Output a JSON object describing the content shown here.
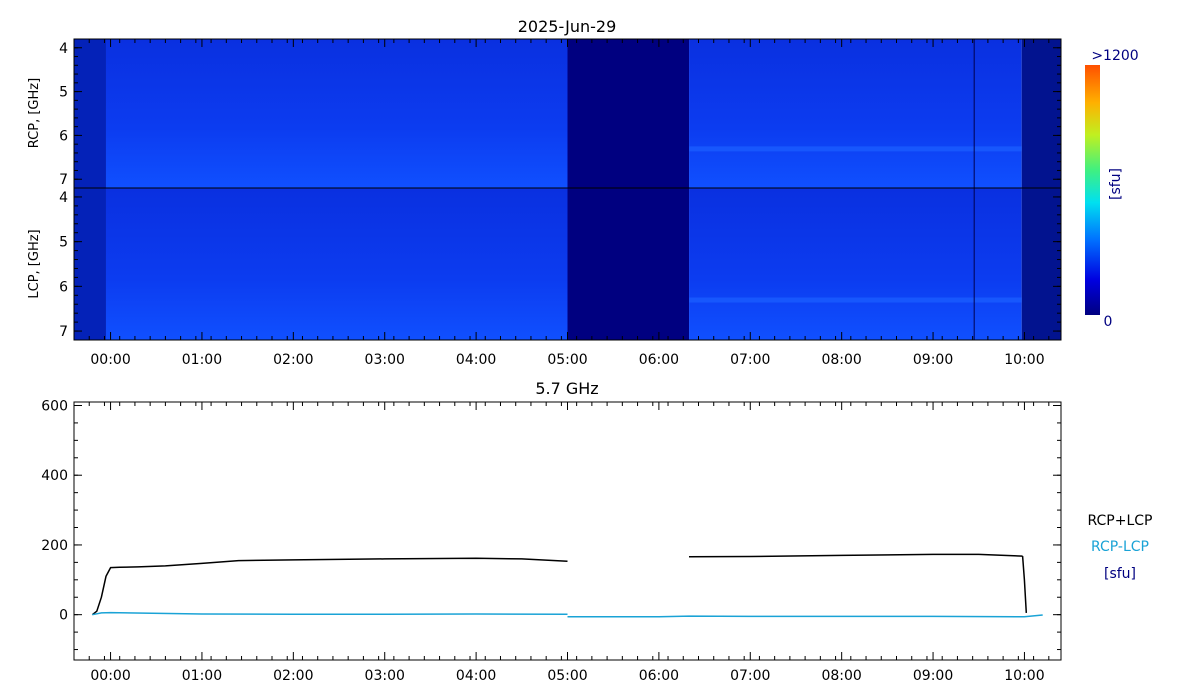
{
  "chart_data": [
    {
      "type": "heatmap",
      "title": "2025-Jun-29",
      "panels": [
        {
          "name": "RCP",
          "ylabel": "RCP, [GHz]"
        },
        {
          "name": "LCP",
          "ylabel": "LCP, [GHz]"
        }
      ],
      "ylim": [
        3.8,
        7.2
      ],
      "yticks": [
        "4",
        "5",
        "6",
        "7"
      ],
      "xlim": [
        -0.4,
        10.4
      ],
      "xticks": [
        "00:00",
        "01:00",
        "02:00",
        "03:00",
        "04:00",
        "05:00",
        "06:00",
        "07:00",
        "08:00",
        "09:00",
        "10:00"
      ],
      "colorbar": {
        "max_label": ">1200",
        "min_label": "0",
        "unit": "[sfu]",
        "range": [
          0,
          1200
        ]
      },
      "data_gap_hours": [
        5.0,
        6.33
      ],
      "vertical_line_hour": 9.45,
      "colors": {
        "low": "#000080",
        "mid": "#0a37e8",
        "high": "#ff5000"
      }
    },
    {
      "type": "line",
      "title": "5.7 GHz",
      "ylim": [
        -130,
        610
      ],
      "yticks": [
        "0",
        "200",
        "400",
        "600"
      ],
      "xlim": [
        -0.4,
        10.4
      ],
      "xticks": [
        "00:00",
        "01:00",
        "02:00",
        "03:00",
        "04:00",
        "05:00",
        "06:00",
        "07:00",
        "08:00",
        "09:00",
        "10:00"
      ],
      "legend_unit": "[sfu]",
      "series": [
        {
          "name": "RCP+LCP",
          "color": "#000000",
          "segments": [
            {
              "x": [
                -0.2,
                -0.15,
                -0.1,
                -0.05,
                0.0,
                0.1,
                0.3,
                0.6,
                1.0,
                1.4,
                2.0,
                3.0,
                4.0,
                4.5,
                5.0
              ],
              "y": [
                0,
                10,
                50,
                110,
                135,
                136,
                137,
                140,
                147,
                155,
                157,
                160,
                162,
                160,
                153
              ]
            },
            {
              "x": [
                6.33,
                7.0,
                8.0,
                9.0,
                9.5,
                9.98
              ],
              "y": [
                166,
                167,
                170,
                173,
                173,
                168
              ]
            },
            {
              "x": [
                9.98,
                10.0,
                10.02
              ],
              "y": [
                168,
                100,
                5
              ]
            }
          ]
        },
        {
          "name": "RCP-LCP",
          "color": "#1aa3d6",
          "segments": [
            {
              "x": [
                -0.2,
                -0.1,
                0.0,
                1.0,
                2.0,
                3.0,
                4.0,
                5.0
              ],
              "y": [
                0,
                5,
                6,
                2,
                1,
                1,
                2,
                1
              ]
            },
            {
              "x": [
                5.0,
                6.0,
                6.33,
                7.0,
                8.0,
                9.0,
                10.0,
                10.2
              ],
              "y": [
                -6,
                -6,
                -4,
                -5,
                -5,
                -5,
                -6,
                -1
              ]
            }
          ]
        }
      ]
    }
  ]
}
